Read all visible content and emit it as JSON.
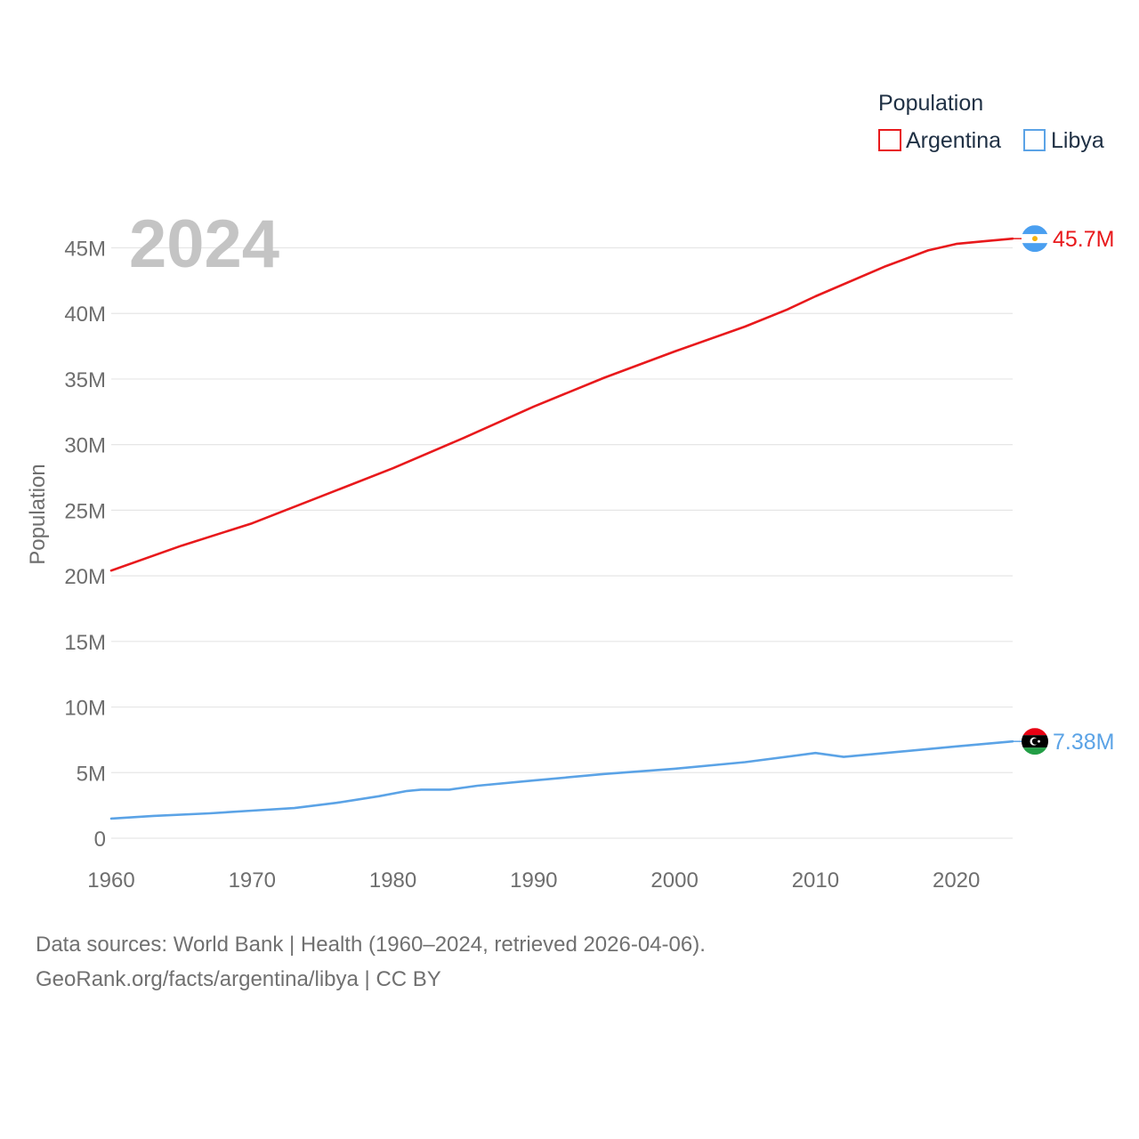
{
  "chart_data": {
    "type": "line",
    "title": "Population",
    "year_label": "2024",
    "xlabel": "",
    "ylabel": "Population",
    "xlim": [
      1960,
      2024
    ],
    "ylim": [
      0,
      47000000
    ],
    "x_ticks": [
      1960,
      1970,
      1980,
      1990,
      2000,
      2010,
      2020
    ],
    "x_tick_labels": [
      "1960",
      "1970",
      "1980",
      "1990",
      "2000",
      "2010",
      "2020"
    ],
    "y_ticks": [
      0,
      5000000,
      10000000,
      15000000,
      20000000,
      25000000,
      30000000,
      35000000,
      40000000,
      45000000
    ],
    "y_tick_labels": [
      "0",
      "5M",
      "10M",
      "15M",
      "20M",
      "25M",
      "30M",
      "35M",
      "40M",
      "45M"
    ],
    "legend": {
      "title": "Population",
      "position": "top-right"
    },
    "grid": true,
    "series": [
      {
        "name": "Argentina",
        "color": "#e8191c",
        "end_label": "45.7M",
        "flag": "argentina-flag-icon",
        "points": [
          [
            1960,
            20400000
          ],
          [
            1965,
            22300000
          ],
          [
            1970,
            24000000
          ],
          [
            1975,
            26100000
          ],
          [
            1980,
            28200000
          ],
          [
            1985,
            30500000
          ],
          [
            1990,
            32900000
          ],
          [
            1995,
            35100000
          ],
          [
            2000,
            37100000
          ],
          [
            2005,
            39000000
          ],
          [
            2008,
            40300000
          ],
          [
            2010,
            41300000
          ],
          [
            2015,
            43600000
          ],
          [
            2018,
            44800000
          ],
          [
            2020,
            45300000
          ],
          [
            2022,
            45500000
          ],
          [
            2024,
            45700000
          ]
        ]
      },
      {
        "name": "Libya",
        "color": "#5ba3e6",
        "end_label": "7.38M",
        "flag": "libya-flag-icon",
        "points": [
          [
            1960,
            1500000
          ],
          [
            1963,
            1700000
          ],
          [
            1967,
            1900000
          ],
          [
            1970,
            2100000
          ],
          [
            1973,
            2300000
          ],
          [
            1976,
            2700000
          ],
          [
            1979,
            3200000
          ],
          [
            1981,
            3600000
          ],
          [
            1982,
            3700000
          ],
          [
            1984,
            3700000
          ],
          [
            1986,
            4000000
          ],
          [
            1990,
            4400000
          ],
          [
            1995,
            4900000
          ],
          [
            2000,
            5300000
          ],
          [
            2005,
            5800000
          ],
          [
            2010,
            6500000
          ],
          [
            2012,
            6200000
          ],
          [
            2015,
            6500000
          ],
          [
            2020,
            7000000
          ],
          [
            2024,
            7380000
          ]
        ]
      }
    ]
  },
  "footer": {
    "line1": "Data sources: World Bank | Health (1960–2024, retrieved 2026-04-06).",
    "line2": "GeoRank.org/facts/argentina/libya | CC BY"
  }
}
